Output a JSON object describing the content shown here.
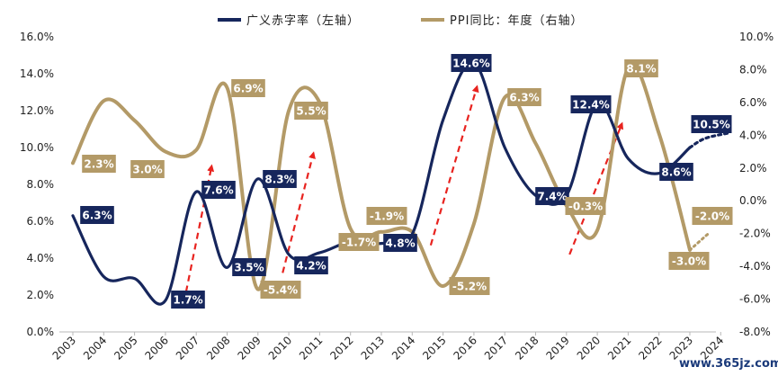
{
  "chart_data": {
    "type": "line",
    "title": "",
    "x": [
      "2003",
      "2004",
      "2005",
      "2006",
      "2007",
      "2008",
      "2009",
      "2010",
      "2011",
      "2012",
      "2013",
      "2014",
      "2015",
      "2016",
      "2017",
      "2018",
      "2019",
      "2020",
      "2021",
      "2022",
      "2023",
      "2024"
    ],
    "y_left": {
      "range": [
        0,
        16
      ],
      "ticks": [
        "0.0%",
        "2.0%",
        "4.0%",
        "6.0%",
        "8.0%",
        "10.0%",
        "12.0%",
        "14.0%",
        "16.0%"
      ]
    },
    "y_right": {
      "range": [
        -8,
        10
      ],
      "ticks": [
        "-8.0%",
        "-6.0%",
        "-4.0%",
        "-2.0%",
        "0.0%",
        "2.0%",
        "4.0%",
        "6.0%",
        "8.0%",
        "10.0%"
      ]
    },
    "legend_position": "top-center",
    "grid": false,
    "series": [
      {
        "name": "广义赤字率（左轴）",
        "axis": "left",
        "color": "#16265c",
        "values": [
          6.3,
          3.0,
          2.9,
          1.7,
          7.6,
          3.5,
          8.3,
          4.2,
          4.3,
          4.9,
          4.8,
          5.3,
          11.5,
          14.6,
          10.0,
          7.4,
          7.4,
          12.4,
          9.4,
          8.6,
          10.0,
          null
        ],
        "projection": [
          [
            2023,
            10.0
          ],
          [
            2023.5,
            10.5
          ],
          [
            2024.3,
            10.8
          ]
        ]
      },
      {
        "name": "PPI同比：年度（右轴）",
        "axis": "right",
        "color": "#b39a67",
        "values": [
          2.3,
          6.1,
          4.9,
          3.0,
          3.1,
          6.9,
          -5.4,
          5.5,
          6.0,
          -1.7,
          -1.9,
          -1.9,
          -5.2,
          -1.4,
          6.3,
          3.5,
          -0.3,
          -1.8,
          8.1,
          4.1,
          -3.0,
          null
        ],
        "projection": [
          [
            2023,
            -3.0
          ],
          [
            2023.6,
            -2.0
          ]
        ]
      }
    ],
    "data_labels": [
      {
        "series": 0,
        "text": "6.3%"
      },
      {
        "series": 0,
        "text": "1.7%"
      },
      {
        "series": 0,
        "text": "7.6%"
      },
      {
        "series": 0,
        "text": "3.5%"
      },
      {
        "series": 0,
        "text": "8.3%"
      },
      {
        "series": 0,
        "text": "4.2%"
      },
      {
        "series": 0,
        "text": "4.8%"
      },
      {
        "series": 0,
        "text": "14.6%"
      },
      {
        "series": 0,
        "text": "7.4%"
      },
      {
        "series": 0,
        "text": "12.4%"
      },
      {
        "series": 0,
        "text": "8.6%"
      },
      {
        "series": 0,
        "text": "10.5%"
      },
      {
        "series": 1,
        "text": "2.3%"
      },
      {
        "series": 1,
        "text": "3.0%"
      },
      {
        "series": 1,
        "text": "6.9%"
      },
      {
        "series": 1,
        "text": "-5.4%"
      },
      {
        "series": 1,
        "text": "5.5%"
      },
      {
        "series": 1,
        "text": "-1.7%"
      },
      {
        "series": 1,
        "text": "-1.9%"
      },
      {
        "series": 1,
        "text": "-5.2%"
      },
      {
        "series": 1,
        "text": "6.3%"
      },
      {
        "series": 1,
        "text": "-0.3%"
      },
      {
        "series": 1,
        "text": "8.1%"
      },
      {
        "series": 1,
        "text": "-3.0%"
      },
      {
        "series": 1,
        "text": "-2.0%"
      }
    ],
    "annotations": {
      "arrow_color": "#e8231f",
      "arrows": [
        {
          "from": [
            2006.6,
            1.6
          ],
          "to": [
            2007.5,
            9.0
          ]
        },
        {
          "from": [
            2009.8,
            3.2
          ],
          "to": [
            2010.8,
            9.7
          ]
        },
        {
          "from": [
            2014.6,
            4.7
          ],
          "to": [
            2016.1,
            13.3
          ]
        },
        {
          "from": [
            2019.1,
            4.2
          ],
          "to": [
            2020.8,
            11.3
          ]
        }
      ]
    }
  },
  "watermark": "www.365jz.com"
}
